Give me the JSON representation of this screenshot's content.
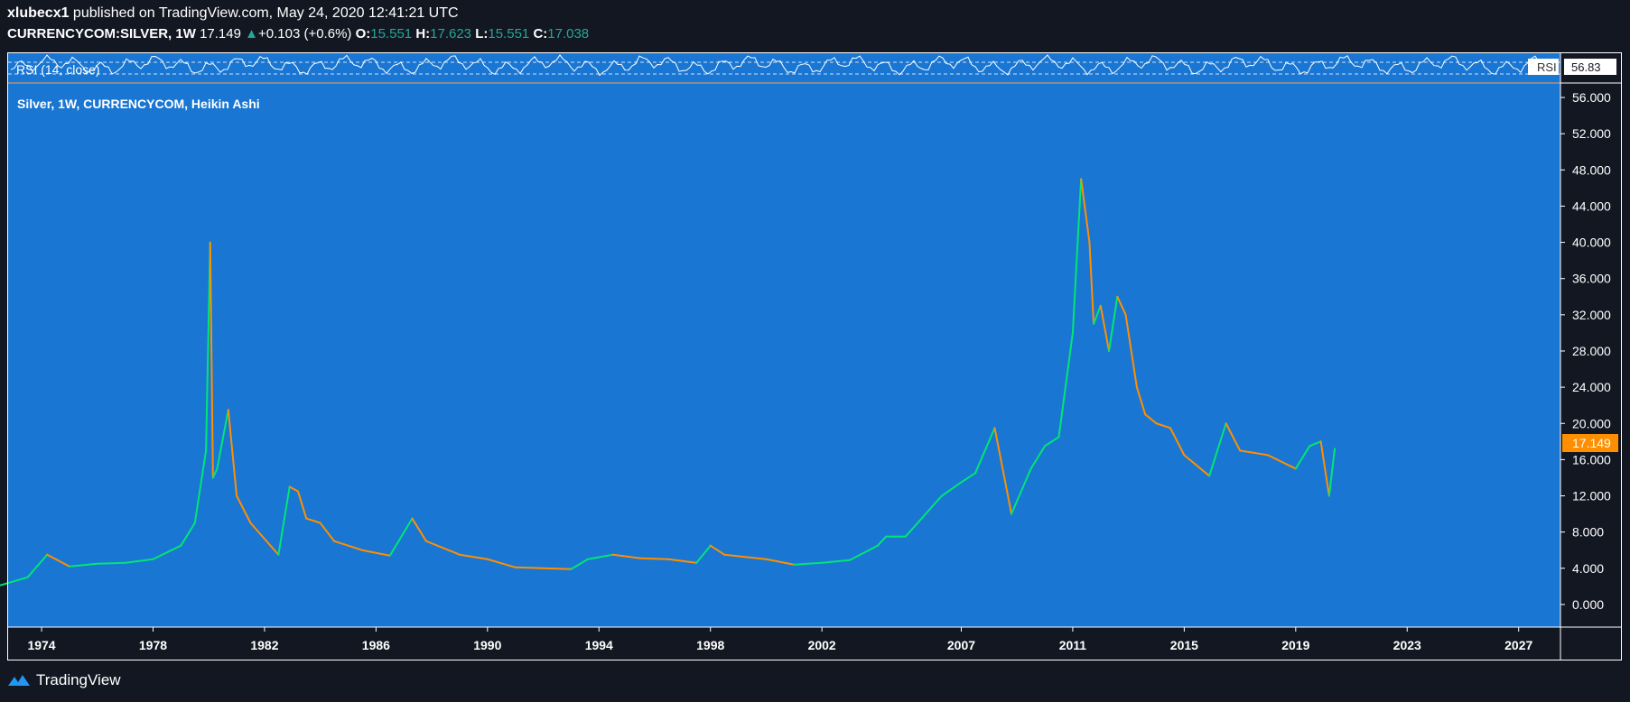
{
  "header": {
    "author": "xlubecx1",
    "published": " published on TradingView.com, May 24, 2020 12:41:21 UTC"
  },
  "ticker": {
    "symbol": "CURRENCYCOM:SILVER, 1W",
    "last": "17.149",
    "change_arrow": "▲",
    "change": "+0.103 (+0.6%)",
    "o_label": "O:",
    "o": "15.551",
    "h_label": "H:",
    "h": "17.623",
    "l_label": "L:",
    "l": "15.551",
    "c_label": "C:",
    "c": "17.038"
  },
  "rsi_panel": {
    "label": "RSI (14, close)",
    "badge_label": "RSI",
    "badge_value": "56.83"
  },
  "main_panel": {
    "legend": "Silver, 1W, CURRENCYCOM, Heikin Ashi",
    "price_badge": "17.149"
  },
  "colors": {
    "pane_bg": "#1976d2",
    "up": "#00e676",
    "down": "#ff8f00",
    "badge_bg": "#ff8f00",
    "page_bg": "#131722"
  },
  "footer": {
    "brand": "TradingView",
    "logo_icon": "tradingview-logo-icon"
  },
  "chart_data": {
    "type": "line",
    "series": [
      {
        "x": [
          1972.5,
          1973.5,
          1974.2,
          1975.0,
          1976.0,
          1977.0,
          1978.0,
          1979.0,
          1979.5,
          1979.9,
          1980.05,
          1980.15,
          1980.3,
          1980.7,
          1981.0,
          1981.5,
          1982.5,
          1982.9,
          1983.2,
          1983.5,
          1984.0,
          1984.5,
          1985.5,
          1986.5,
          1987.3,
          1987.8,
          1989.0,
          1990.0,
          1991.0,
          1992.0,
          1993.0,
          1993.6,
          1994.5,
          1995.5,
          1996.5,
          1997.5,
          1998.0,
          1998.5,
          2000.0,
          2001.0,
          2002.0,
          2003.0,
          2004.0,
          2004.3,
          2005.0,
          2006.3,
          2007.0,
          2007.5,
          2008.2,
          2008.8,
          2009.5,
          2010.0,
          2010.5,
          2011.0,
          2011.3,
          2011.6,
          2011.75,
          2012.0,
          2012.3,
          2012.6,
          2012.9,
          2013.3,
          2013.6,
          2014.0,
          2014.5,
          2015.0,
          2015.9,
          2016.5,
          2017.0,
          2018.0,
          2019.0,
          2019.5,
          2019.9,
          2020.2,
          2020.4
        ],
        "values": [
          2.1,
          3.0,
          5.5,
          4.2,
          4.5,
          4.6,
          5.0,
          6.5,
          9.0,
          17.0,
          40.0,
          14.0,
          15.0,
          21.5,
          12.0,
          9.0,
          5.5,
          13.0,
          12.5,
          9.5,
          9.0,
          7.0,
          6.0,
          5.4,
          9.5,
          7.0,
          5.5,
          5.0,
          4.1,
          4.0,
          3.9,
          5.0,
          5.5,
          5.1,
          5.0,
          4.6,
          6.5,
          5.5,
          5.0,
          4.4,
          4.6,
          4.9,
          6.5,
          7.5,
          7.5,
          12.0,
          13.5,
          14.5,
          19.5,
          10.0,
          15.0,
          17.5,
          18.5,
          30.0,
          47.0,
          40.0,
          31.0,
          33.0,
          28.0,
          34.0,
          32.0,
          24.0,
          21.0,
          20.0,
          19.5,
          16.5,
          14.2,
          20.0,
          17.0,
          16.5,
          15.0,
          17.5,
          18.0,
          12.0,
          17.2
        ]
      }
    ],
    "x_ticks": [
      "1974",
      "1978",
      "1982",
      "1986",
      "1990",
      "1994",
      "1998",
      "2002",
      "2007",
      "2011",
      "2015",
      "2019",
      "2023",
      "2027"
    ],
    "y_ticks": [
      "0.000",
      "4.000",
      "8.000",
      "12.000",
      "16.000",
      "20.000",
      "24.000",
      "28.000",
      "32.000",
      "36.000",
      "40.000",
      "44.000",
      "48.000",
      "52.000",
      "56.000"
    ],
    "ylim": [
      -2.5,
      57.5
    ],
    "xlim": [
      1972.8,
      2028.5
    ],
    "grid": false
  }
}
